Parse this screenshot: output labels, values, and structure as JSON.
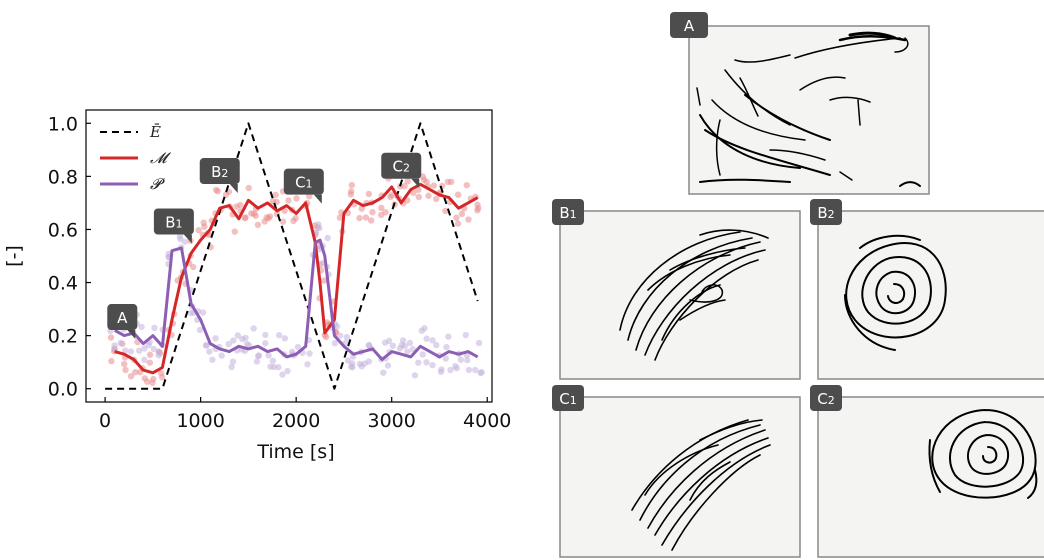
{
  "chart_data": {
    "type": "line",
    "xlabel": "Time [s]",
    "ylabel": "[-]",
    "xlim": [
      -200,
      4050
    ],
    "ylim": [
      -0.05,
      1.05
    ],
    "xticks": [
      0,
      1000,
      2000,
      3000,
      4000
    ],
    "yticks": [
      0.0,
      0.2,
      0.4,
      0.6,
      0.8,
      1.0
    ],
    "xtick_labels": [
      "0",
      "1000",
      "2000",
      "3000",
      "4000"
    ],
    "ytick_labels": [
      "0.0",
      "0.2",
      "0.4",
      "0.6",
      "0.8",
      "1.0"
    ],
    "legend_position": "top-left",
    "series": [
      {
        "name": "Ē",
        "color": "#000000",
        "style": "dashed",
        "x": [
          0,
          600,
          1500,
          2400,
          3300,
          3900
        ],
        "y": [
          0.0,
          0.0,
          1.0,
          0.0,
          1.0,
          0.33
        ]
      },
      {
        "name": "𝓜",
        "color": "#d62728",
        "style": "solid",
        "x": [
          100,
          200,
          300,
          400,
          500,
          600,
          700,
          800,
          900,
          1000,
          1100,
          1200,
          1300,
          1400,
          1500,
          1600,
          1700,
          1800,
          1900,
          2000,
          2100,
          2200,
          2250,
          2300,
          2400,
          2500,
          2600,
          2700,
          2800,
          2900,
          3000,
          3100,
          3200,
          3300,
          3400,
          3500,
          3600,
          3700,
          3800,
          3900
        ],
        "y": [
          0.14,
          0.13,
          0.11,
          0.07,
          0.06,
          0.08,
          0.26,
          0.42,
          0.51,
          0.56,
          0.6,
          0.68,
          0.69,
          0.64,
          0.71,
          0.68,
          0.7,
          0.67,
          0.69,
          0.66,
          0.7,
          0.55,
          0.4,
          0.21,
          0.26,
          0.66,
          0.71,
          0.69,
          0.7,
          0.72,
          0.76,
          0.7,
          0.75,
          0.77,
          0.75,
          0.73,
          0.72,
          0.68,
          0.7,
          0.72
        ]
      },
      {
        "name": "𝓟",
        "color": "#8c5fb5",
        "style": "solid",
        "x": [
          100,
          200,
          300,
          400,
          500,
          600,
          700,
          800,
          900,
          1000,
          1100,
          1200,
          1300,
          1400,
          1500,
          1600,
          1700,
          1800,
          1900,
          2000,
          2100,
          2200,
          2250,
          2300,
          2400,
          2500,
          2600,
          2700,
          2800,
          2900,
          3000,
          3100,
          3200,
          3300,
          3400,
          3500,
          3600,
          3700,
          3800,
          3900
        ],
        "y": [
          0.22,
          0.2,
          0.21,
          0.17,
          0.2,
          0.16,
          0.52,
          0.53,
          0.32,
          0.26,
          0.17,
          0.15,
          0.14,
          0.16,
          0.15,
          0.16,
          0.14,
          0.15,
          0.12,
          0.13,
          0.16,
          0.55,
          0.56,
          0.5,
          0.2,
          0.16,
          0.13,
          0.14,
          0.15,
          0.11,
          0.14,
          0.13,
          0.12,
          0.16,
          0.14,
          0.12,
          0.14,
          0.13,
          0.14,
          0.12
        ]
      }
    ],
    "annotations": [
      {
        "label": "A",
        "x": 180,
        "y": 0.27,
        "main": "A",
        "sub": ""
      },
      {
        "label": "B1",
        "x": 720,
        "y": 0.63,
        "main": "B",
        "sub": "1"
      },
      {
        "label": "B2",
        "x": 1200,
        "y": 0.82,
        "main": "B",
        "sub": "2"
      },
      {
        "label": "C1",
        "x": 2080,
        "y": 0.78,
        "main": "C",
        "sub": "1"
      },
      {
        "label": "C2",
        "x": 3100,
        "y": 0.84,
        "main": "C",
        "sub": "2"
      }
    ]
  },
  "panels": [
    {
      "id": "A",
      "main": "A",
      "sub": ""
    },
    {
      "id": "B1",
      "main": "B",
      "sub": "1"
    },
    {
      "id": "B2",
      "main": "B",
      "sub": "2"
    },
    {
      "id": "C1",
      "main": "C",
      "sub": "1"
    },
    {
      "id": "C2",
      "main": "C",
      "sub": "2"
    }
  ],
  "colors": {
    "marker_red": "#e88c8c",
    "marker_purple": "#c3b3dd",
    "callout": "#4d4d4d"
  }
}
